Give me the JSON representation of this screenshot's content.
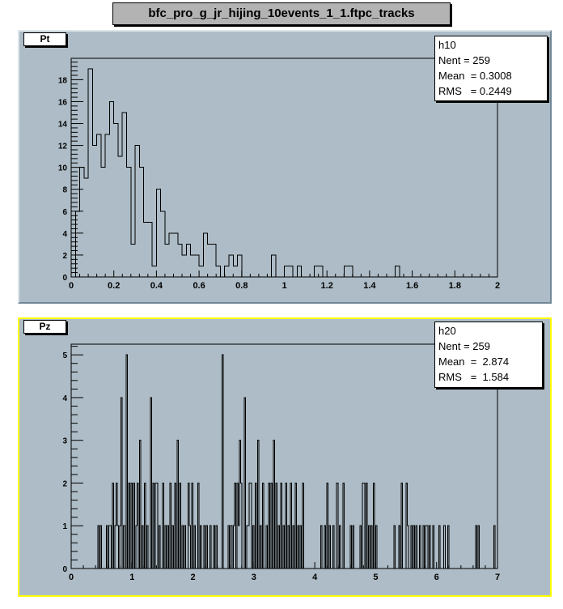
{
  "canvas_title": "bfc_pro_g_jr_hijing_10events_1_1.ftpc_tracks",
  "colors": {
    "pad_bg": "#adbcc6",
    "selected_border": "#ffff00",
    "line": "#000000"
  },
  "chart_data": [
    {
      "type": "bar",
      "title": "Pt",
      "stats": {
        "name": "h10",
        "nent": "Nent = 259",
        "mean": "Mean  = 0.3008",
        "rms": "RMS   = 0.2449"
      },
      "xlim": [
        0,
        2
      ],
      "ylim": [
        0,
        19.95
      ],
      "bin_width": 0.02,
      "x_ticks": [
        "0",
        "0.2",
        "0.4",
        "0.6",
        "0.8",
        "1",
        "1.2",
        "1.4",
        "1.6",
        "1.8",
        "2"
      ],
      "y_ticks": [
        "0",
        "2",
        "4",
        "6",
        "8",
        "10",
        "12",
        "14",
        "16",
        "18"
      ],
      "values": [
        0,
        6,
        10,
        9,
        19,
        12,
        13,
        10,
        13,
        16,
        14,
        11,
        15,
        10,
        3,
        12,
        10,
        5,
        5,
        1,
        8,
        6,
        3,
        4,
        4,
        3,
        2,
        3,
        2,
        2,
        1,
        4,
        3,
        3,
        1,
        0,
        1,
        2,
        1,
        2,
        0,
        0,
        0,
        0,
        0,
        0,
        0,
        2,
        0,
        0,
        1,
        1,
        0,
        1,
        0,
        0,
        0,
        1,
        1,
        0,
        0,
        0,
        0,
        0,
        1,
        1,
        0,
        0,
        0,
        0,
        0,
        0,
        0,
        0,
        0,
        0,
        1,
        0,
        0,
        0,
        0,
        0,
        0,
        0,
        0,
        0,
        0,
        0,
        0,
        0,
        0,
        0,
        0,
        0,
        0,
        0,
        0,
        0,
        0,
        0
      ]
    },
    {
      "type": "bar",
      "title": "Pz",
      "stats": {
        "name": "h20",
        "nent": "Nent = 259",
        "mean": "Mean  =  2.874",
        "rms": "RMS   =  1.584"
      },
      "xlim": [
        0,
        7
      ],
      "ylim": [
        0,
        5.25
      ],
      "bin_width": 0.02,
      "x_ticks": [
        "0",
        "1",
        "2",
        "3",
        "4",
        "5",
        "6",
        "7"
      ],
      "y_ticks": [
        "0",
        "1",
        "2",
        "3",
        "4",
        "5"
      ],
      "bins": [
        [
          0.44,
          1
        ],
        [
          0.48,
          1
        ],
        [
          0.58,
          1
        ],
        [
          0.62,
          1
        ],
        [
          0.64,
          1
        ],
        [
          0.68,
          2
        ],
        [
          0.72,
          1
        ],
        [
          0.74,
          2
        ],
        [
          0.76,
          1
        ],
        [
          0.8,
          1
        ],
        [
          0.82,
          4
        ],
        [
          0.86,
          1
        ],
        [
          0.9,
          5
        ],
        [
          0.94,
          2
        ],
        [
          0.98,
          2
        ],
        [
          1.02,
          2
        ],
        [
          1.06,
          1
        ],
        [
          1.08,
          2
        ],
        [
          1.12,
          3
        ],
        [
          1.16,
          1
        ],
        [
          1.2,
          2
        ],
        [
          1.24,
          1
        ],
        [
          1.3,
          4
        ],
        [
          1.34,
          2
        ],
        [
          1.38,
          2
        ],
        [
          1.4,
          2
        ],
        [
          1.44,
          1
        ],
        [
          1.5,
          2
        ],
        [
          1.54,
          1
        ],
        [
          1.58,
          1
        ],
        [
          1.62,
          2
        ],
        [
          1.66,
          1
        ],
        [
          1.7,
          2
        ],
        [
          1.74,
          3
        ],
        [
          1.78,
          2
        ],
        [
          1.82,
          1
        ],
        [
          1.86,
          1
        ],
        [
          1.92,
          2
        ],
        [
          1.94,
          1
        ],
        [
          1.98,
          2
        ],
        [
          2.02,
          1
        ],
        [
          2.08,
          2
        ],
        [
          2.12,
          1
        ],
        [
          2.18,
          1
        ],
        [
          2.22,
          1
        ],
        [
          2.28,
          1
        ],
        [
          2.34,
          1
        ],
        [
          2.38,
          1
        ],
        [
          2.48,
          5
        ],
        [
          2.58,
          1
        ],
        [
          2.62,
          1
        ],
        [
          2.66,
          1
        ],
        [
          2.68,
          2
        ],
        [
          2.72,
          2
        ],
        [
          2.74,
          1
        ],
        [
          2.76,
          3
        ],
        [
          2.78,
          2
        ],
        [
          2.84,
          4
        ],
        [
          2.88,
          1
        ],
        [
          2.9,
          1
        ],
        [
          2.92,
          2
        ],
        [
          2.94,
          2
        ],
        [
          2.98,
          1
        ],
        [
          3.02,
          2
        ],
        [
          3.06,
          3
        ],
        [
          3.1,
          1
        ],
        [
          3.14,
          2
        ],
        [
          3.2,
          1
        ],
        [
          3.24,
          2
        ],
        [
          3.28,
          2
        ],
        [
          3.32,
          3
        ],
        [
          3.36,
          2
        ],
        [
          3.4,
          1
        ],
        [
          3.44,
          2
        ],
        [
          3.48,
          1
        ],
        [
          3.52,
          2
        ],
        [
          3.56,
          1
        ],
        [
          3.6,
          2
        ],
        [
          3.64,
          1
        ],
        [
          3.68,
          2
        ],
        [
          3.72,
          1
        ],
        [
          3.76,
          1
        ],
        [
          3.8,
          2
        ],
        [
          4.1,
          1
        ],
        [
          4.16,
          1
        ],
        [
          4.2,
          2
        ],
        [
          4.24,
          1
        ],
        [
          4.3,
          1
        ],
        [
          4.36,
          2
        ],
        [
          4.4,
          1
        ],
        [
          4.46,
          2
        ],
        [
          4.58,
          1
        ],
        [
          4.62,
          1
        ],
        [
          4.74,
          1
        ],
        [
          4.78,
          2
        ],
        [
          4.8,
          2
        ],
        [
          4.84,
          2
        ],
        [
          4.88,
          1
        ],
        [
          4.92,
          1
        ],
        [
          4.96,
          2
        ],
        [
          5.0,
          1
        ],
        [
          5.3,
          1
        ],
        [
          5.38,
          1
        ],
        [
          5.42,
          2
        ],
        [
          5.5,
          2
        ],
        [
          5.52,
          1
        ],
        [
          5.58,
          1
        ],
        [
          5.62,
          1
        ],
        [
          5.66,
          1
        ],
        [
          5.72,
          1
        ],
        [
          5.78,
          1
        ],
        [
          5.82,
          1
        ],
        [
          5.84,
          1
        ],
        [
          5.88,
          1
        ],
        [
          5.94,
          1
        ],
        [
          6.04,
          1
        ],
        [
          6.12,
          1
        ],
        [
          6.18,
          1
        ],
        [
          6.64,
          1
        ],
        [
          6.68,
          1
        ],
        [
          6.94,
          1
        ]
      ]
    }
  ]
}
